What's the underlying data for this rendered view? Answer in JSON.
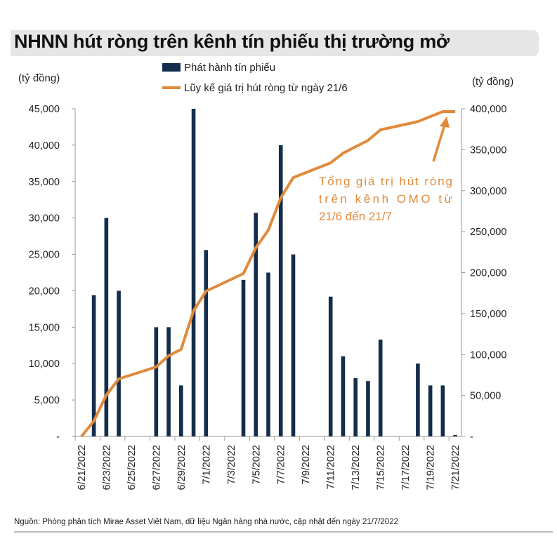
{
  "title": "NHNN hút ròng trên kênh tín phiếu thị trường mở",
  "source": "Nguồn: Phòng phân tích Mirae Asset Việt Nam, dữ liệu Ngân hàng nhà nước, cập nhật đến ngày 21/7/2022",
  "chart_data": {
    "type": "bar+line",
    "title": "NHNN hút ròng trên kênh tín phiếu thị trường mở",
    "left_axis": {
      "unit_label": "(tỷ đồng)",
      "ylim": [
        0,
        45000
      ],
      "ticks": [
        "-",
        "5,000",
        "10,000",
        "15,000",
        "20,000",
        "25,000",
        "30,000",
        "35,000",
        "40,000",
        "45,000"
      ]
    },
    "right_axis": {
      "unit_label": "(tỷ đồng)",
      "ylim": [
        0,
        400000
      ],
      "ticks": [
        "-",
        "50,000",
        "100,000",
        "150,000",
        "200,000",
        "250,000",
        "300,000",
        "350,000",
        "400,000"
      ]
    },
    "categories": [
      "6/21/2022",
      "6/22/2022",
      "6/23/2022",
      "6/24/2022",
      "6/25/2022",
      "6/26/2022",
      "6/27/2022",
      "6/28/2022",
      "6/29/2022",
      "6/30/2022",
      "7/1/2022",
      "7/2/2022",
      "7/3/2022",
      "7/4/2022",
      "7/5/2022",
      "7/6/2022",
      "7/7/2022",
      "7/8/2022",
      "7/9/2022",
      "7/10/2022",
      "7/11/2022",
      "7/12/2022",
      "7/13/2022",
      "7/14/2022",
      "7/15/2022",
      "7/16/2022",
      "7/17/2022",
      "7/18/2022",
      "7/19/2022",
      "7/20/2022",
      "7/21/2022"
    ],
    "tick_labels": [
      "6/21/2022",
      "6/23/2022",
      "6/25/2022",
      "6/27/2022",
      "6/29/2022",
      "7/1/2022",
      "7/3/2022",
      "7/5/2022",
      "7/7/2022",
      "7/9/2022",
      "7/11/2022",
      "7/13/2022",
      "7/15/2022",
      "7/17/2022",
      "7/19/2022",
      "7/21/2022"
    ],
    "series": [
      {
        "name": "Phát hành tín phiếu",
        "type": "bar",
        "axis": "left",
        "color": "#142d4c",
        "values": [
          0,
          19400,
          30000,
          20000,
          null,
          null,
          15000,
          15000,
          7000,
          45000,
          25600,
          null,
          null,
          21500,
          30700,
          22500,
          40000,
          25000,
          null,
          null,
          19200,
          11000,
          8000,
          7600,
          13300,
          null,
          null,
          10000,
          7000,
          7000,
          200
        ]
      },
      {
        "name": "Lũy kế giá trị hút ròng từ ngày 21/6",
        "type": "line",
        "axis": "right",
        "color": "#e08a3c",
        "values": [
          0,
          18800,
          50500,
          70200,
          null,
          null,
          84800,
          98500,
          106200,
          153300,
          177300,
          null,
          null,
          198700,
          230400,
          251800,
          291200,
          316000,
          null,
          null,
          334000,
          345800,
          353700,
          361400,
          374300,
          null,
          null,
          384300,
          390500,
          396600,
          396600
        ]
      }
    ],
    "legend_placement": "top",
    "annotation": {
      "text": "Tổng giá trị hút ròng trên kênh OMO từ 21/6 đến 21/7",
      "points_to": "7/20/2022"
    },
    "grid": false
  }
}
